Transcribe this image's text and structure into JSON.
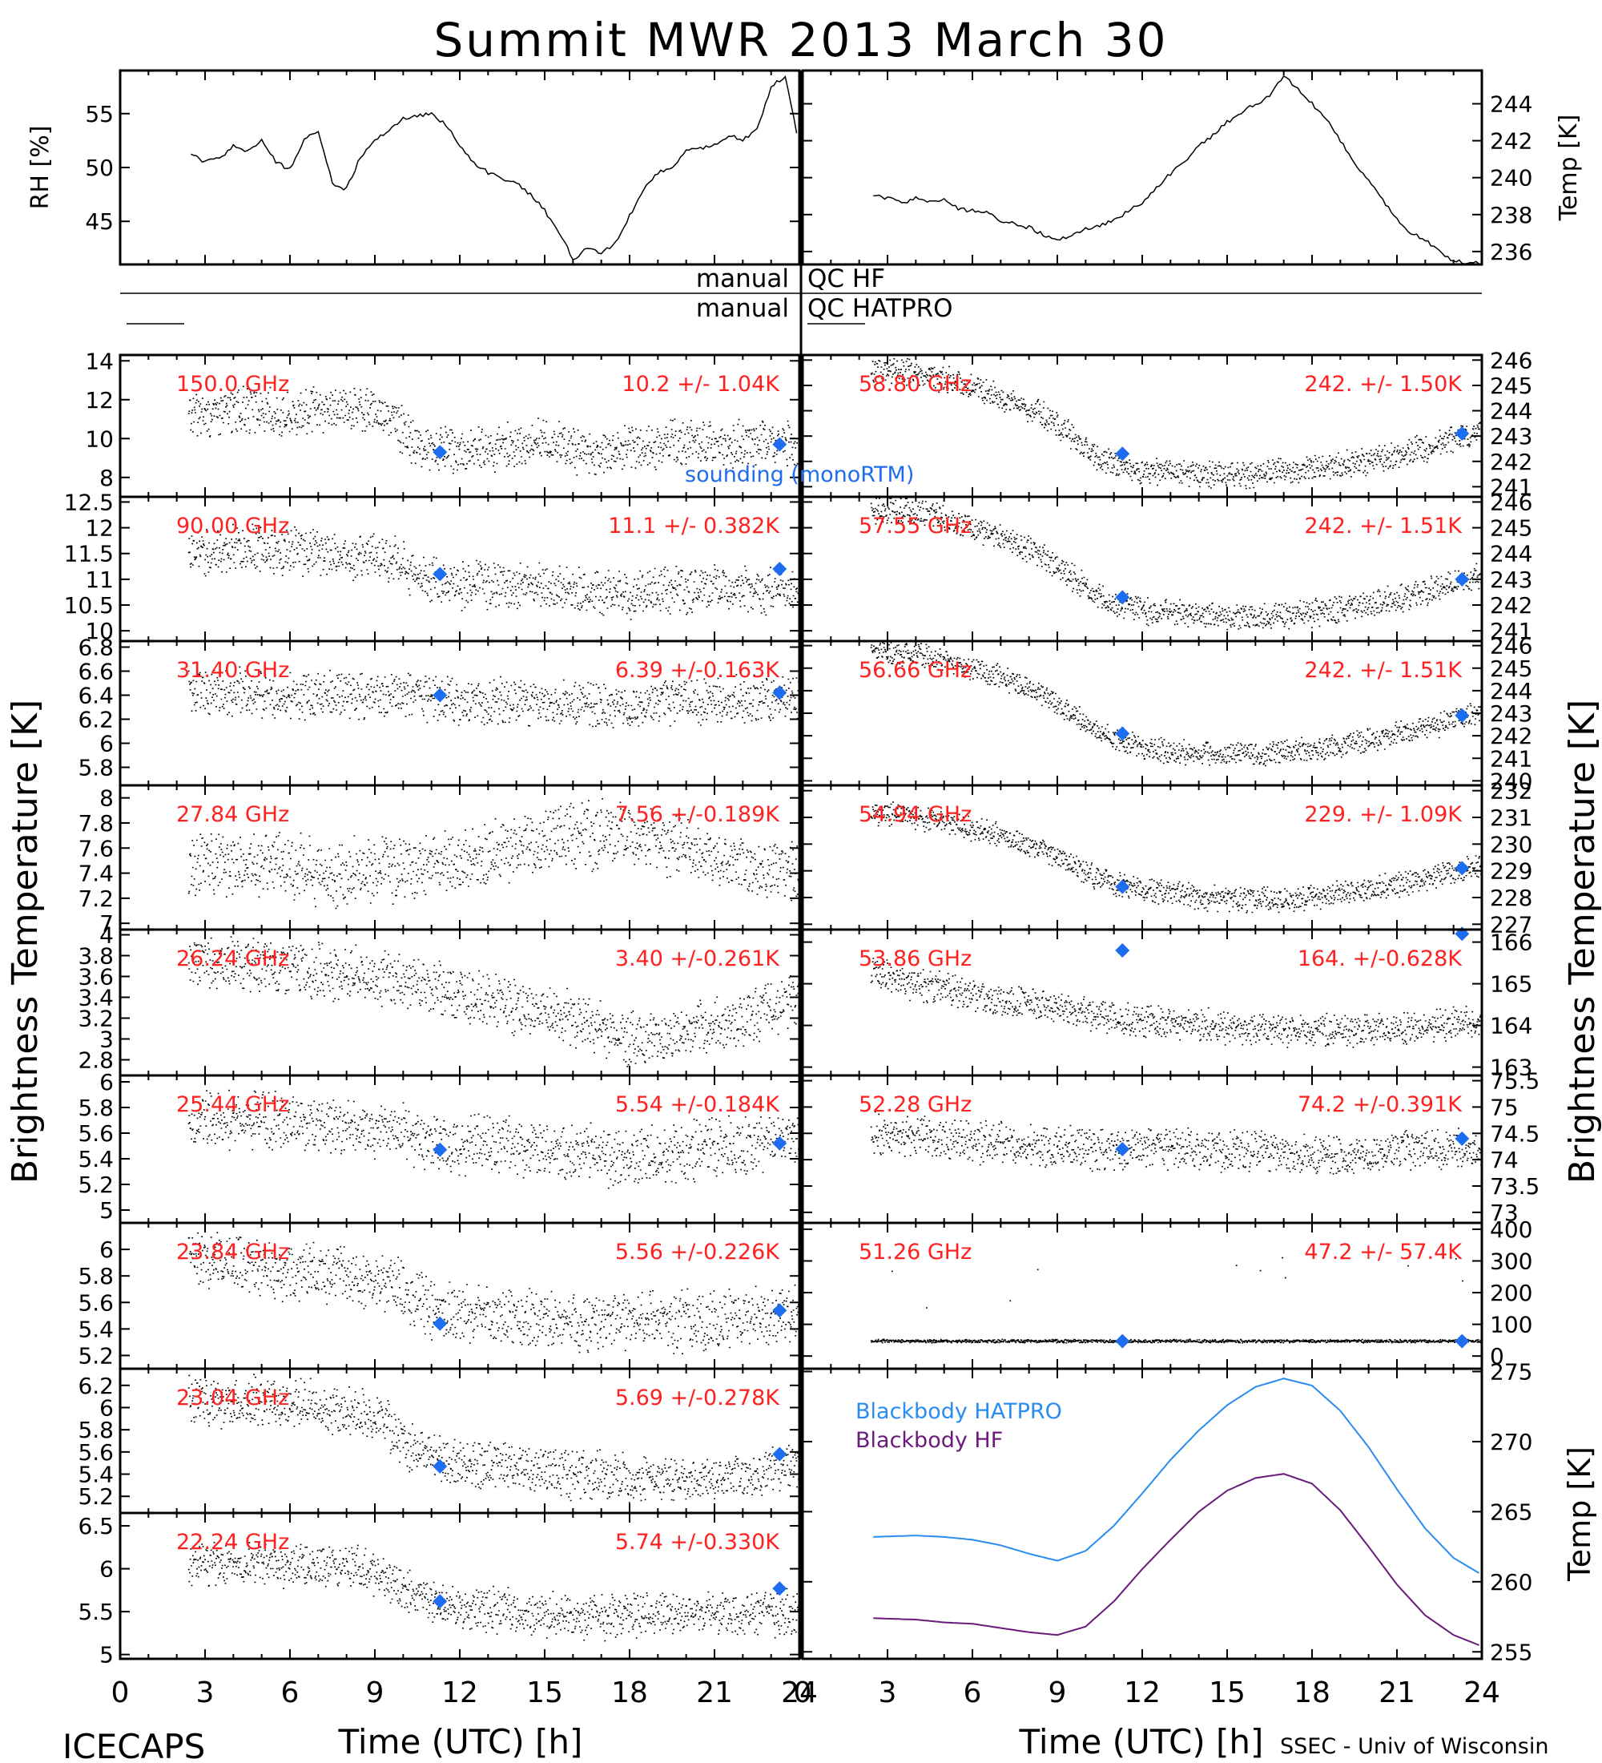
{
  "figure": {
    "title": "Summit MWR 2013 March 30",
    "footer_left": "ICECAPS",
    "footer_right": "SSEC - Univ of Wisconsin",
    "x_axis_label": "Time (UTC) [h]",
    "y_axis_label_left": "Brightness Temperature [K]",
    "y_axis_label_right": "Brightness Temperature [K]",
    "qc_label_manual_hf": "manual",
    "qc_label_hf": "QC HF",
    "qc_label_manual_hatpro": "manual",
    "qc_label_hatpro": "QC HATPRO",
    "sounding_legend": "sounding (monoRTM)",
    "colors": {
      "trace": "#000000",
      "annotation": "#ff2020",
      "marker": "#1e6cf0",
      "hatpro": "#2a8cf0",
      "hf": "#6a1a7a"
    }
  },
  "chart_data": [
    {
      "id": "rh",
      "type": "line",
      "ylabel": "RH [%]",
      "xlim": [
        0,
        24
      ],
      "ylim": [
        41,
        59
      ],
      "yticks": [
        45,
        50,
        55
      ],
      "x": [
        2.5,
        3,
        3.5,
        4,
        4.5,
        5,
        5.5,
        6,
        6.5,
        7,
        7.5,
        8,
        8.5,
        9,
        9.5,
        10,
        10.5,
        11,
        11.5,
        12,
        12.5,
        13,
        13.5,
        14,
        14.5,
        15,
        15.5,
        16,
        16.5,
        17,
        17.5,
        18,
        18.5,
        19,
        19.5,
        20,
        20.5,
        21,
        21.5,
        22,
        22.5,
        23,
        23.5,
        24
      ],
      "y": [
        51.2,
        50.5,
        50.8,
        52,
        51.5,
        52.5,
        50.5,
        49.8,
        52.5,
        53.5,
        48.5,
        48,
        51,
        52.5,
        53.5,
        54.5,
        54.8,
        55,
        54,
        52,
        50.5,
        49.5,
        49,
        48.5,
        47.5,
        46,
        44,
        41.5,
        42.5,
        42,
        43,
        45.5,
        48,
        49.5,
        50,
        51.5,
        51.8,
        52,
        53,
        52.5,
        53.5,
        57.5,
        58.5,
        52
      ]
    },
    {
      "id": "temp",
      "type": "line",
      "ylabel": "Temp [K]",
      "xlim": [
        0,
        24
      ],
      "ylim": [
        235.3,
        245.8
      ],
      "yticks": [
        236,
        238,
        240,
        242,
        244
      ],
      "x": [
        2.5,
        3,
        3.5,
        4,
        4.5,
        5,
        5.5,
        6,
        6.5,
        7,
        7.5,
        8,
        8.5,
        9,
        9.5,
        10,
        10.5,
        11,
        11.5,
        12,
        12.5,
        13,
        13.5,
        14,
        14.5,
        15,
        15.5,
        16,
        16.5,
        17,
        17.5,
        18,
        18.5,
        19,
        19.5,
        20,
        20.5,
        21,
        21.5,
        22,
        22.5,
        23,
        23.5,
        24
      ],
      "y": [
        239,
        238.9,
        238.6,
        238.9,
        238.7,
        238.8,
        238.3,
        238.2,
        238.1,
        237.7,
        237.5,
        237.3,
        236.9,
        236.6,
        236.9,
        237.2,
        237.4,
        237.7,
        238.2,
        238.6,
        239.5,
        240.2,
        240.9,
        241.7,
        242.3,
        243,
        243.5,
        244,
        244.4,
        245.5,
        244.8,
        244,
        243.2,
        242,
        240.8,
        239.8,
        238.8,
        237.7,
        237,
        236.6,
        236,
        235.5,
        235.4,
        235.4
      ]
    },
    {
      "id": "ch_150",
      "panel": "left",
      "type": "scatter",
      "freq": "150.0 GHz",
      "stat": "10.2 +/- 1.04K",
      "ylim": [
        7,
        14.3
      ],
      "yticks": [
        8,
        10,
        12,
        14
      ],
      "x": [
        2.5,
        4,
        5.5,
        7,
        8.5,
        9.5,
        10.5,
        12,
        13.5,
        15,
        16.5,
        18,
        19.5,
        21,
        22.5,
        24
      ],
      "y": [
        11.2,
        11.5,
        11.3,
        11.4,
        11.6,
        11.2,
        9.5,
        9.3,
        9.6,
        9.8,
        9.3,
        9.5,
        9.8,
        9.6,
        9.8,
        9.7
      ],
      "noise": 0.9,
      "sounding": {
        "x": [
          11.3,
          23.3
        ],
        "y": [
          9.3,
          9.7
        ]
      }
    },
    {
      "id": "ch_90",
      "panel": "left",
      "type": "scatter",
      "freq": "90.00 GHz",
      "stat": "11.1 +/- 0.382K",
      "ylim": [
        9.8,
        12.6
      ],
      "yticks": [
        10.0,
        10.5,
        11.0,
        11.5,
        12.0,
        12.5
      ],
      "x": [
        2.5,
        5,
        7.5,
        9.5,
        10.5,
        12,
        14,
        16,
        18,
        20,
        22,
        24
      ],
      "y": [
        11.5,
        11.6,
        11.5,
        11.4,
        11.1,
        10.9,
        10.9,
        10.8,
        10.7,
        10.8,
        10.8,
        10.8
      ],
      "noise": 0.35,
      "sounding": {
        "x": [
          11.3,
          23.3
        ],
        "y": [
          11.1,
          11.2
        ]
      }
    },
    {
      "id": "ch_3140",
      "panel": "left",
      "type": "scatter",
      "freq": "31.40 GHz",
      "stat": "6.39 +/-0.163K",
      "ylim": [
        5.65,
        6.85
      ],
      "yticks": [
        5.8,
        6.0,
        6.2,
        6.4,
        6.6,
        6.8
      ],
      "x": [
        2.5,
        5,
        7.5,
        10,
        12,
        14,
        16,
        18,
        20,
        22,
        24
      ],
      "y": [
        6.45,
        6.4,
        6.4,
        6.4,
        6.35,
        6.35,
        6.35,
        6.3,
        6.35,
        6.35,
        6.4
      ],
      "noise": 0.15,
      "sounding": {
        "x": [
          11.3,
          23.3
        ],
        "y": [
          6.4,
          6.42
        ]
      }
    },
    {
      "id": "ch_2784",
      "panel": "left",
      "type": "scatter",
      "freq": "27.84 GHz",
      "stat": "7.56 +/-0.189K",
      "ylim": [
        6.95,
        8.1
      ],
      "yticks": [
        7.0,
        7.2,
        7.4,
        7.6,
        7.8,
        8.0
      ],
      "x": [
        2.5,
        5,
        7.5,
        10,
        12,
        14,
        16,
        18,
        20,
        22,
        24
      ],
      "y": [
        7.45,
        7.5,
        7.4,
        7.45,
        7.5,
        7.6,
        7.7,
        7.7,
        7.6,
        7.45,
        7.4
      ],
      "noise": 0.2,
      "sounding": {
        "x": [],
        "y": []
      }
    },
    {
      "id": "ch_2624",
      "panel": "left",
      "type": "scatter",
      "freq": "26.24 GHz",
      "stat": "3.40 +/-0.261K",
      "ylim": [
        2.65,
        4.05
      ],
      "yticks": [
        2.8,
        3.0,
        3.2,
        3.4,
        3.6,
        3.8,
        4.0
      ],
      "x": [
        2.5,
        5,
        7.5,
        10,
        12,
        14,
        16,
        18,
        20,
        22,
        24
      ],
      "y": [
        3.75,
        3.7,
        3.65,
        3.55,
        3.45,
        3.3,
        3.2,
        3.0,
        3.05,
        3.2,
        3.4
      ],
      "noise": 0.2,
      "sounding": {
        "x": [],
        "y": []
      }
    },
    {
      "id": "ch_2544",
      "panel": "left",
      "type": "scatter",
      "freq": "25.44 GHz",
      "stat": "5.54 +/-0.184K",
      "ylim": [
        4.9,
        6.05
      ],
      "yticks": [
        5.0,
        5.2,
        5.4,
        5.6,
        5.8,
        6.0
      ],
      "x": [
        2.5,
        5,
        7.5,
        10,
        12,
        14,
        16,
        18,
        20,
        22,
        24
      ],
      "y": [
        5.7,
        5.72,
        5.65,
        5.6,
        5.5,
        5.5,
        5.45,
        5.4,
        5.45,
        5.5,
        5.55
      ],
      "noise": 0.17,
      "sounding": {
        "x": [
          11.3,
          23.3
        ],
        "y": [
          5.47,
          5.52
        ]
      }
    },
    {
      "id": "ch_2384",
      "panel": "left",
      "type": "scatter",
      "freq": "23.84 GHz",
      "stat": "5.56 +/-0.226K",
      "ylim": [
        5.1,
        6.2
      ],
      "yticks": [
        5.2,
        5.4,
        5.6,
        5.8,
        6.0
      ],
      "x": [
        2.5,
        5,
        7.5,
        9.5,
        11,
        13,
        15,
        17,
        19,
        21,
        24
      ],
      "y": [
        5.95,
        5.85,
        5.8,
        5.75,
        5.55,
        5.5,
        5.45,
        5.45,
        5.45,
        5.45,
        5.5
      ],
      "noise": 0.17,
      "sounding": {
        "x": [
          11.3,
          23.3
        ],
        "y": [
          5.44,
          5.54
        ]
      }
    },
    {
      "id": "ch_2304",
      "panel": "left",
      "type": "scatter",
      "freq": "23.04 GHz",
      "stat": "5.69 +/-0.278K",
      "ylim": [
        5.05,
        6.35
      ],
      "yticks": [
        5.2,
        5.4,
        5.6,
        5.8,
        6.0,
        6.2
      ],
      "x": [
        2.5,
        5,
        7.5,
        9,
        10.5,
        12,
        14,
        16,
        18,
        20,
        22,
        24
      ],
      "y": [
        6.05,
        6.05,
        6.0,
        5.9,
        5.6,
        5.5,
        5.45,
        5.4,
        5.35,
        5.35,
        5.4,
        5.45
      ],
      "noise": 0.17,
      "sounding": {
        "x": [
          11.3,
          23.3
        ],
        "y": [
          5.47,
          5.58
        ]
      }
    },
    {
      "id": "ch_2224",
      "panel": "left",
      "type": "scatter",
      "freq": "22.24 GHz",
      "stat": "5.74 +/-0.330K",
      "ylim": [
        4.95,
        6.65
      ],
      "yticks": [
        5.0,
        5.5,
        6.0,
        6.5
      ],
      "x": [
        2.5,
        5,
        7.5,
        9,
        10.5,
        12,
        14,
        16,
        18,
        20,
        22,
        24
      ],
      "y": [
        6.05,
        6.05,
        6.05,
        5.95,
        5.65,
        5.55,
        5.5,
        5.45,
        5.45,
        5.45,
        5.45,
        5.5
      ],
      "noise": 0.2,
      "sounding": {
        "x": [
          11.3,
          23.3
        ],
        "y": [
          5.62,
          5.77
        ]
      }
    },
    {
      "id": "ch_5866",
      "panel": "right",
      "type": "scatter",
      "freq": "58.80 GHz",
      "stat": "242. +/- 1.50K",
      "ylim": [
        240.6,
        246.2
      ],
      "yticks": [
        241,
        242,
        243,
        244,
        245,
        246
      ],
      "x": [
        2.5,
        4,
        5.5,
        7,
        8.5,
        9.5,
        10.5,
        12,
        14,
        16,
        18,
        20,
        22,
        24
      ],
      "y": [
        245.6,
        245.5,
        245.1,
        244.5,
        243.8,
        243.0,
        242.0,
        241.6,
        241.5,
        241.5,
        241.7,
        242.0,
        242.5,
        243.3
      ],
      "noise": 0.4,
      "sounding": {
        "x": [
          11.3,
          23.3
        ],
        "y": [
          242.3,
          243.1
        ]
      }
    },
    {
      "id": "ch_5766",
      "panel": "right",
      "type": "scatter",
      "freq": "57.55 GHz",
      "stat": "242. +/- 1.51K",
      "ylim": [
        240.6,
        246.2
      ],
      "yticks": [
        241,
        242,
        243,
        244,
        245,
        246
      ],
      "x": [
        2.5,
        4,
        5.5,
        7,
        8.5,
        9.5,
        10.5,
        12,
        14,
        16,
        18,
        20,
        22,
        24
      ],
      "y": [
        245.7,
        245.6,
        245.2,
        244.6,
        243.9,
        243.1,
        242.2,
        241.8,
        241.6,
        241.5,
        241.7,
        242.0,
        242.5,
        243.2
      ],
      "noise": 0.4,
      "sounding": {
        "x": [
          11.3,
          23.3
        ],
        "y": [
          242.3,
          243.0
        ]
      }
    },
    {
      "id": "ch_5666",
      "panel": "right",
      "type": "scatter",
      "freq": "56.66 GHz",
      "stat": "242. +/- 1.51K",
      "ylim": [
        239.8,
        246.2
      ],
      "yticks": [
        240,
        241,
        242,
        243,
        244,
        245,
        246
      ],
      "x": [
        2.5,
        4,
        5.5,
        7,
        8.5,
        9.5,
        10.5,
        12,
        14,
        16,
        18,
        20,
        22,
        24
      ],
      "y": [
        245.7,
        245.6,
        245.2,
        244.6,
        243.8,
        243.0,
        242.1,
        241.4,
        241.2,
        241.2,
        241.4,
        241.8,
        242.3,
        243.1
      ],
      "noise": 0.4,
      "sounding": {
        "x": [
          11.3,
          23.3
        ],
        "y": [
          242.1,
          242.9
        ]
      }
    },
    {
      "id": "ch_5466",
      "panel": "right",
      "type": "scatter",
      "freq": "54.94 GHz",
      "stat": "229. +/- 1.09K",
      "ylim": [
        226.8,
        232.2
      ],
      "yticks": [
        227,
        228,
        229,
        230,
        231,
        232
      ],
      "x": [
        2.5,
        4,
        5.5,
        7,
        8.5,
        9.5,
        10.5,
        12,
        14,
        16,
        18,
        20,
        22,
        24
      ],
      "y": [
        231.2,
        231.0,
        230.7,
        230.3,
        229.8,
        229.2,
        228.7,
        228.3,
        228.0,
        227.9,
        228.0,
        228.3,
        228.7,
        229.2
      ],
      "noise": 0.35,
      "sounding": {
        "x": [
          11.3,
          23.3
        ],
        "y": [
          228.4,
          229.1
        ]
      }
    },
    {
      "id": "ch_5386",
      "panel": "right",
      "type": "scatter",
      "freq": "53.86 GHz",
      "stat": "164. +/-0.628K",
      "ylim": [
        162.8,
        166.3
      ],
      "yticks": [
        163,
        164,
        165,
        166
      ],
      "x": [
        2.5,
        4,
        5.5,
        7,
        8.5,
        10,
        12,
        14,
        16,
        18,
        20,
        22,
        24
      ],
      "y": [
        165.2,
        165.0,
        164.8,
        164.6,
        164.5,
        164.3,
        164.1,
        164.0,
        163.9,
        163.9,
        163.9,
        164.0,
        164.1
      ],
      "noise": 0.3,
      "sounding": {
        "x": [
          11.3,
          23.3
        ],
        "y": [
          165.8,
          166.2
        ]
      }
    },
    {
      "id": "ch_5228",
      "panel": "right",
      "type": "scatter",
      "freq": "52.28 GHz",
      "stat": "74.2 +/-0.391K",
      "ylim": [
        72.8,
        75.6
      ],
      "yticks": [
        73.0,
        73.5,
        74.0,
        74.5,
        75.0,
        75.5
      ],
      "x": [
        2.5,
        5,
        7.5,
        10,
        12,
        14,
        16,
        18,
        20,
        22,
        24
      ],
      "y": [
        74.5,
        74.4,
        74.3,
        74.2,
        74.2,
        74.2,
        74.2,
        74.1,
        74.1,
        74.2,
        74.2
      ],
      "noise": 0.3,
      "sounding": {
        "x": [
          11.3,
          23.3
        ],
        "y": [
          74.2,
          74.4
        ]
      }
    },
    {
      "id": "ch_5126",
      "panel": "right",
      "type": "scatter",
      "freq": "51.26 GHz",
      "stat": "47.2 +/- 57.4K",
      "ylim": [
        -40,
        420
      ],
      "yticks": [
        0,
        100,
        200,
        300,
        400
      ],
      "x": [
        2.5,
        6,
        10,
        14,
        18,
        22,
        24
      ],
      "y": [
        47,
        47,
        47,
        47,
        47,
        47,
        47
      ],
      "noise": 4,
      "sounding": {
        "x": [
          11.3,
          23.3
        ],
        "y": [
          47,
          47
        ]
      }
    },
    {
      "id": "blackbody",
      "panel": "right",
      "type": "line",
      "ylabel": "Temp [K]",
      "ylim": [
        254.5,
        275.2
      ],
      "yticks": [
        255,
        260,
        265,
        270,
        275
      ],
      "x": [
        2.5,
        4,
        5,
        6,
        7,
        8,
        9,
        10,
        11,
        12,
        13,
        14,
        15,
        16,
        17,
        18,
        19,
        20,
        21,
        22,
        23,
        24
      ],
      "series": [
        {
          "name": "Blackbody HATPRO",
          "y": [
            263.2,
            263.3,
            263.2,
            263.0,
            262.6,
            262.0,
            261.5,
            262.2,
            264.0,
            266.3,
            268.7,
            270.8,
            272.6,
            273.9,
            274.5,
            274.0,
            272.2,
            269.6,
            266.6,
            263.8,
            261.7,
            260.5
          ]
        },
        {
          "name": "Blackbody HF",
          "y": [
            257.4,
            257.3,
            257.1,
            257.0,
            256.7,
            256.4,
            256.2,
            256.8,
            258.6,
            260.9,
            263.0,
            265.0,
            266.5,
            267.4,
            267.7,
            267.0,
            265.1,
            262.5,
            259.8,
            257.6,
            256.2,
            255.4
          ]
        }
      ],
      "sounding": {
        "x": [],
        "y": []
      }
    }
  ],
  "x_ticks": [
    0,
    3,
    6,
    9,
    12,
    15,
    18,
    21,
    24
  ]
}
